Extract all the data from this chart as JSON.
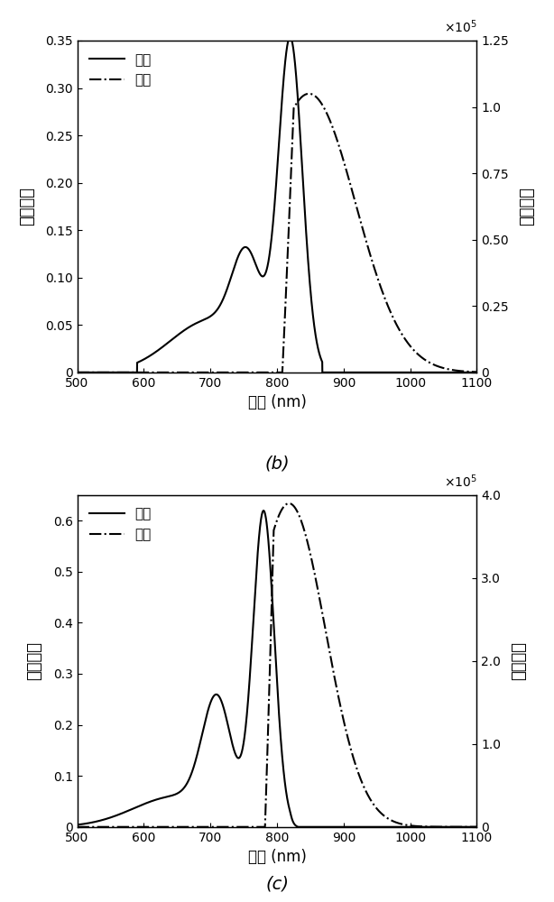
{
  "panel_b": {
    "abs_peak_x": 820,
    "abs_peak_val": 0.345,
    "abs_shoulder_x": 760,
    "abs_shoulder_val": 0.128,
    "em_peak_x": 840,
    "em_peak_val": 1.05,
    "ylim_abs": [
      0,
      0.35
    ],
    "ylim_em": [
      0,
      1.25
    ],
    "yticks_abs": [
      0,
      0.05,
      0.1,
      0.15,
      0.2,
      0.25,
      0.3,
      0.35
    ],
    "ytick_labels_abs": [
      "0",
      "0.05",
      "0.10",
      "0.15",
      "0.20",
      "0.25",
      "0.30",
      "0.35"
    ],
    "yticks_em": [
      0,
      0.25,
      0.5,
      0.75,
      1.0,
      1.25
    ],
    "ytick_labels_em": [
      "0",
      "0.25",
      "0.50",
      "0.75",
      "1.0",
      "1.25"
    ],
    "label": "(b)"
  },
  "panel_c": {
    "abs_peak_x": 780,
    "abs_peak_val": 0.61,
    "abs_shoulder_x": 715,
    "abs_shoulder_val": 0.265,
    "em_peak_x": 810,
    "em_peak_val": 3.9,
    "ylim_abs": [
      0,
      0.65
    ],
    "ylim_em": [
      0,
      4.0
    ],
    "yticks_abs": [
      0,
      0.1,
      0.2,
      0.3,
      0.4,
      0.5,
      0.6
    ],
    "ytick_labels_abs": [
      "0",
      "0.1",
      "0.2",
      "0.3",
      "0.4",
      "0.5",
      "0.6"
    ],
    "yticks_em": [
      0,
      1.0,
      2.0,
      3.0,
      4.0
    ],
    "ytick_labels_em": [
      "0",
      "1.0",
      "2.0",
      "3.0",
      "4.0"
    ],
    "label": "(c)"
  },
  "xlim": [
    500,
    1100
  ],
  "xticks": [
    500,
    600,
    700,
    800,
    900,
    1000,
    1100
  ],
  "xlabel": "波长 (nm)",
  "ylabel_abs": "吸收强度",
  "ylabel_em": "荷光强度",
  "legend_abs": "吸收",
  "legend_em": "发射",
  "line_color": "#000000",
  "linewidth": 1.5
}
